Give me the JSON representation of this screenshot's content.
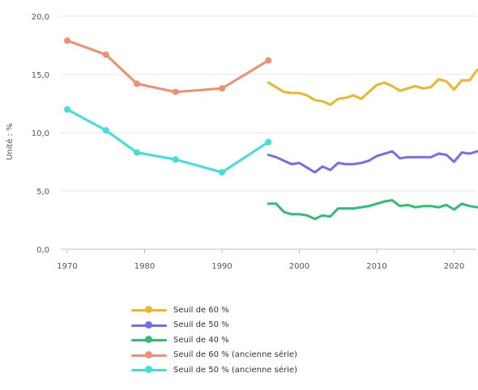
{
  "chart_data": {
    "type": "line",
    "ylabel": "Unité : %",
    "ylim": [
      0,
      20
    ],
    "yticks": [
      {
        "value": 0,
        "label": "0,0"
      },
      {
        "value": 5,
        "label": "5,0"
      },
      {
        "value": 10,
        "label": "10,0"
      },
      {
        "value": 15,
        "label": "15,0"
      },
      {
        "value": 20,
        "label": "20,0"
      }
    ],
    "xlim": [
      1970,
      2023
    ],
    "xticks": [
      {
        "value": 1970,
        "label": "1970"
      },
      {
        "value": 1980,
        "label": "1980"
      },
      {
        "value": 1990,
        "label": "1990"
      },
      {
        "value": 2000,
        "label": "2000"
      },
      {
        "value": 2010,
        "label": "2010"
      },
      {
        "value": 2020,
        "label": "2020"
      }
    ],
    "grid": true,
    "legend_position": "bottom",
    "series": [
      {
        "name": "Seuil de 60 %",
        "color": "#f0b429",
        "x": [
          1996,
          1997,
          1998,
          1999,
          2000,
          2001,
          2002,
          2003,
          2004,
          2005,
          2006,
          2007,
          2008,
          2009,
          2010,
          2011,
          2012,
          2013,
          2014,
          2015,
          2016,
          2017,
          2018,
          2019,
          2020,
          2021,
          2022,
          2023
        ],
        "y": [
          14.3,
          13.9,
          13.5,
          13.4,
          13.4,
          13.2,
          12.8,
          12.7,
          12.4,
          12.9,
          13.0,
          13.2,
          12.9,
          13.5,
          14.1,
          14.3,
          14.0,
          13.6,
          13.8,
          14.0,
          13.8,
          13.9,
          14.6,
          14.4,
          13.7,
          14.5,
          14.5,
          15.4
        ],
        "markers": false
      },
      {
        "name": "Seuil de 50 %",
        "color": "#6f6ff0",
        "x": [
          1996,
          1997,
          1998,
          1999,
          2000,
          2001,
          2002,
          2003,
          2004,
          2005,
          2006,
          2007,
          2008,
          2009,
          2010,
          2011,
          2012,
          2013,
          2014,
          2015,
          2016,
          2017,
          2018,
          2019,
          2020,
          2021,
          2022,
          2023
        ],
        "y": [
          8.1,
          7.9,
          7.6,
          7.3,
          7.4,
          7.0,
          6.6,
          7.1,
          6.8,
          7.4,
          7.3,
          7.3,
          7.4,
          7.6,
          8.0,
          8.2,
          8.4,
          7.8,
          7.9,
          7.9,
          7.9,
          7.9,
          8.2,
          8.1,
          7.5,
          8.3,
          8.2,
          8.4
        ],
        "markers": false
      },
      {
        "name": "Seuil de 40 %",
        "color": "#2fbf74",
        "x": [
          1996,
          1997,
          1998,
          1999,
          2000,
          2001,
          2002,
          2003,
          2004,
          2005,
          2006,
          2007,
          2008,
          2009,
          2010,
          2011,
          2012,
          2013,
          2014,
          2015,
          2016,
          2017,
          2018,
          2019,
          2020,
          2021,
          2022,
          2023
        ],
        "y": [
          3.9,
          3.9,
          3.2,
          3.0,
          3.0,
          2.9,
          2.6,
          2.9,
          2.8,
          3.5,
          3.5,
          3.5,
          3.6,
          3.7,
          3.9,
          4.1,
          4.2,
          3.7,
          3.8,
          3.6,
          3.7,
          3.7,
          3.6,
          3.8,
          3.4,
          3.9,
          3.7,
          3.6
        ],
        "markers": false
      },
      {
        "name": "Seuil de 60 % (ancienne série)",
        "color": "#f09070",
        "x": [
          1970,
          1975,
          1979,
          1984,
          1990,
          1996
        ],
        "y": [
          17.9,
          16.7,
          14.2,
          13.5,
          13.8,
          16.2
        ],
        "markers": true
      },
      {
        "name": "Seuil de 50 % (ancienne série)",
        "color": "#3ee0d8",
        "x": [
          1970,
          1975,
          1979,
          1984,
          1990,
          1996
        ],
        "y": [
          12.0,
          10.2,
          8.3,
          7.7,
          6.6,
          9.2
        ],
        "markers": true
      }
    ]
  }
}
